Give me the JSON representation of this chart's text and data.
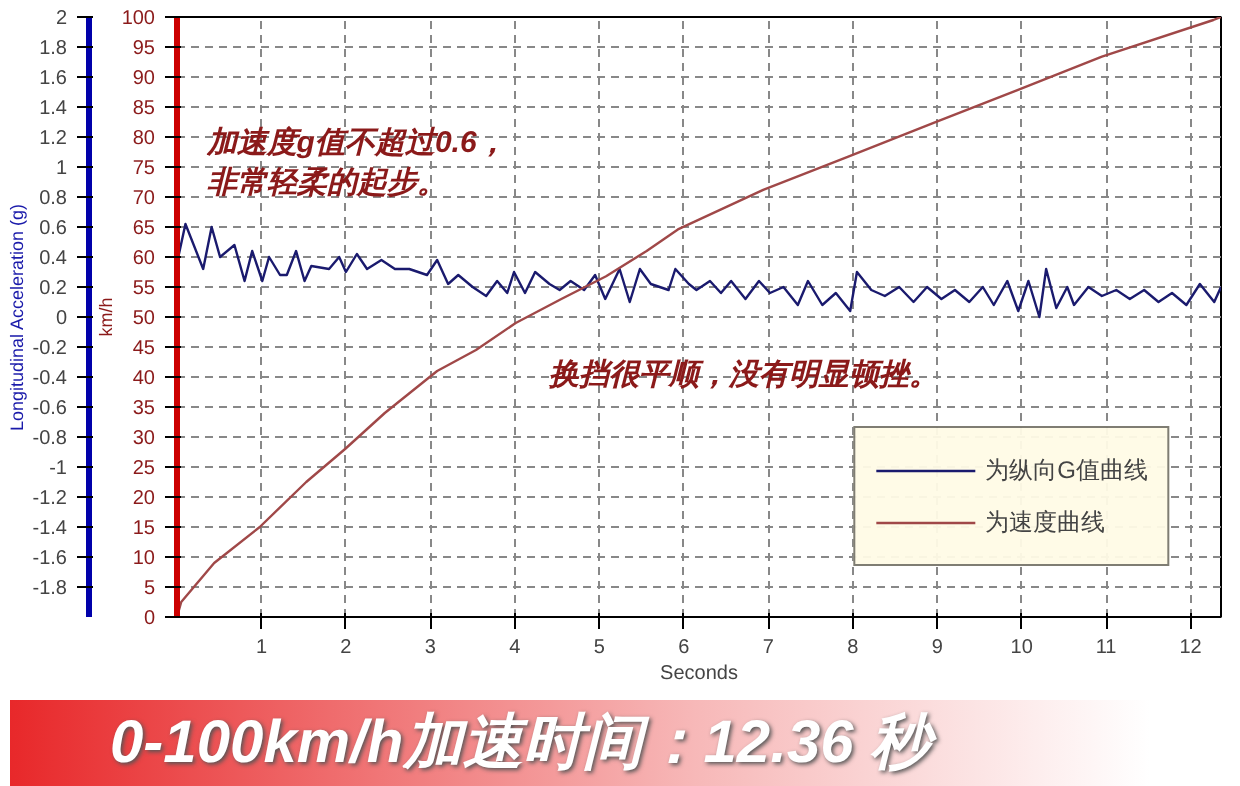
{
  "chart_data": {
    "type": "line",
    "xlabel": "Seconds",
    "ylabel": "Longitudinal Acceleration (g)",
    "y2label": "km/h",
    "xlim": [
      0,
      12.36
    ],
    "xticks": [
      1,
      2,
      3,
      4,
      5,
      6,
      7,
      8,
      9,
      10,
      11,
      12
    ],
    "ylim": [
      -2,
      2
    ],
    "yticks": [
      -1.8,
      -1.6,
      -1.4,
      -1.2,
      -1,
      -0.8,
      -0.6,
      -0.4,
      -0.2,
      0,
      0.2,
      0.4,
      0.6,
      0.8,
      1,
      1.2,
      1.4,
      1.6,
      1.8,
      2
    ],
    "y2lim": [
      0,
      100
    ],
    "y2ticks": [
      0,
      5,
      10,
      15,
      20,
      25,
      30,
      35,
      40,
      45,
      50,
      55,
      60,
      65,
      70,
      75,
      80,
      85,
      90,
      95,
      100
    ],
    "grid": true,
    "legend": "bottom right",
    "series": [
      {
        "name": "为纵向G值曲线",
        "color": "#1a1a6e",
        "x": [
          0,
          0.1,
          0.31,
          0.41,
          0.51,
          0.68,
          0.8,
          0.89,
          1.01,
          1.09,
          1.22,
          1.3,
          1.41,
          1.51,
          1.59,
          1.8,
          1.92,
          2.0,
          2.13,
          2.25,
          2.42,
          2.58,
          2.75,
          2.96,
          3.08,
          3.21,
          3.33,
          3.5,
          3.66,
          3.79,
          3.91,
          3.99,
          4.12,
          4.24,
          4.41,
          4.53,
          4.66,
          4.82,
          4.95,
          5.07,
          5.24,
          5.36,
          5.48,
          5.61,
          5.82,
          5.9,
          6.06,
          6.15,
          6.31,
          6.44,
          6.56,
          6.73,
          6.89,
          7.02,
          7.18,
          7.35,
          7.47,
          7.64,
          7.8,
          7.97,
          8.05,
          8.22,
          8.38,
          8.55,
          8.72,
          8.88,
          9.05,
          9.21,
          9.38,
          9.54,
          9.67,
          9.83,
          9.96,
          10.08,
          10.21,
          10.29,
          10.41,
          10.54,
          10.62,
          10.79,
          10.95,
          11.12,
          11.28,
          11.45,
          11.62,
          11.78,
          11.95,
          12.11,
          12.28,
          12.36
        ],
        "values": [
          0.36,
          0.62,
          0.32,
          0.6,
          0.4,
          0.48,
          0.24,
          0.44,
          0.24,
          0.4,
          0.28,
          0.28,
          0.44,
          0.24,
          0.34,
          0.32,
          0.4,
          0.3,
          0.42,
          0.32,
          0.38,
          0.32,
          0.32,
          0.28,
          0.38,
          0.22,
          0.28,
          0.2,
          0.14,
          0.24,
          0.16,
          0.3,
          0.16,
          0.3,
          0.22,
          0.18,
          0.24,
          0.18,
          0.28,
          0.12,
          0.32,
          0.1,
          0.32,
          0.22,
          0.18,
          0.32,
          0.22,
          0.18,
          0.24,
          0.16,
          0.24,
          0.12,
          0.24,
          0.16,
          0.2,
          0.08,
          0.24,
          0.08,
          0.16,
          0.04,
          0.3,
          0.18,
          0.14,
          0.2,
          0.1,
          0.2,
          0.12,
          0.18,
          0.1,
          0.2,
          0.08,
          0.24,
          0.04,
          0.24,
          0.0,
          0.32,
          0.06,
          0.2,
          0.08,
          0.2,
          0.14,
          0.18,
          0.12,
          0.18,
          0.1,
          0.16,
          0.08,
          0.22,
          0.1,
          0.2
        ]
      },
      {
        "name": "为速度曲线",
        "color": "#a04848",
        "axis": "y2",
        "x": [
          0,
          0.05,
          0.44,
          0.98,
          1.53,
          1.99,
          2.46,
          3.08,
          3.54,
          4.01,
          4.55,
          5.08,
          5.56,
          5.93,
          6.94,
          7.94,
          8.95,
          9.95,
          10.95,
          12.27,
          12.36
        ],
        "values": [
          0,
          2.5,
          9,
          15,
          22.5,
          28,
          34,
          41,
          44.5,
          49,
          53,
          56.8,
          61,
          64.6,
          71.2,
          76.7,
          82.3,
          87.8,
          93.4,
          99.5,
          100
        ]
      }
    ],
    "annotations": [
      "加速度g值不超过0.6，",
      "非常轻柔的起步。",
      "换挡很平顺，没有明显顿挫。",
      "0-100km/h加速时间：12.36 秒"
    ]
  }
}
